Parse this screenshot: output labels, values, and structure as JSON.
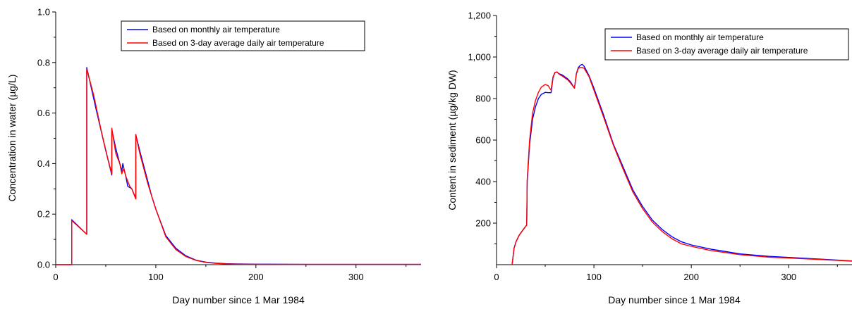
{
  "colors": {
    "monthly": "#0000ff",
    "three_day": "#ff0000",
    "axis": "#000000"
  },
  "chart_data": [
    {
      "type": "line",
      "xlabel": "Day number since 1 Mar 1984",
      "ylabel": "Concentration in water (µg/L)",
      "xlim": [
        0,
        365
      ],
      "ylim": [
        0,
        1.0
      ],
      "xticks": [
        0,
        100,
        200,
        300
      ],
      "xtick_labels": [
        "0",
        "100",
        "200",
        "300"
      ],
      "yticks": [
        0,
        0.2,
        0.4,
        0.6,
        0.8,
        1.0
      ],
      "ytick_labels": [
        "0.0",
        "0.2",
        "0.4",
        "0.6",
        "0.8",
        "1.0"
      ],
      "grid": false,
      "legend_position": "top-right",
      "series": [
        {
          "name": "Based on monthly air temperature",
          "color": "#0000ff",
          "x": [
            0,
            16,
            16,
            31,
            31,
            40,
            50,
            56,
            56,
            60,
            66,
            67,
            70,
            72,
            76,
            80,
            80,
            84,
            88,
            92,
            96,
            100,
            110,
            120,
            130,
            140,
            150,
            160,
            170,
            180,
            200,
            250,
            300,
            365
          ],
          "y": [
            0,
            0,
            0.178,
            0.12,
            0.78,
            0.62,
            0.45,
            0.355,
            0.535,
            0.46,
            0.37,
            0.4,
            0.35,
            0.31,
            0.3,
            0.262,
            0.515,
            0.45,
            0.39,
            0.33,
            0.27,
            0.22,
            0.115,
            0.065,
            0.035,
            0.018,
            0.01,
            0.006,
            0.004,
            0.003,
            0.002,
            0.001,
            0.001,
            0.001
          ]
        },
        {
          "name": "Based on 3-day average daily air temperature",
          "color": "#ff0000",
          "x": [
            0,
            16,
            16,
            31,
            31,
            38,
            46,
            52,
            56,
            56,
            60,
            64,
            66,
            68,
            70,
            72,
            74,
            76,
            78,
            80,
            80,
            84,
            88,
            92,
            96,
            100,
            110,
            120,
            130,
            140,
            150,
            160,
            170,
            180,
            200,
            250,
            300,
            365
          ],
          "y": [
            0,
            0,
            0.175,
            0.12,
            0.775,
            0.67,
            0.52,
            0.42,
            0.36,
            0.54,
            0.44,
            0.4,
            0.36,
            0.38,
            0.35,
            0.33,
            0.31,
            0.3,
            0.28,
            0.26,
            0.515,
            0.44,
            0.38,
            0.32,
            0.27,
            0.22,
            0.11,
            0.06,
            0.032,
            0.017,
            0.009,
            0.005,
            0.003,
            0.002,
            0.001,
            0.001,
            0.001,
            0.001
          ]
        }
      ]
    },
    {
      "type": "line",
      "xlabel": "Day number since 1 Mar 1984",
      "ylabel": "Content in sediment (µg/kg DW)",
      "xlim": [
        0,
        365
      ],
      "ylim": [
        0,
        1200
      ],
      "xticks": [
        0,
        100,
        200,
        300
      ],
      "xtick_labels": [
        "0",
        "100",
        "200",
        "300"
      ],
      "yticks": [
        200,
        400,
        600,
        800,
        1000,
        1200
      ],
      "ytick_labels": [
        "200",
        "400",
        "600",
        "800",
        "1,000",
        "1,200"
      ],
      "grid": false,
      "legend_position": "top-right",
      "series": [
        {
          "name": "Based on monthly air temperature",
          "color": "#0000ff",
          "x": [
            16,
            18,
            20,
            23,
            26,
            30,
            31,
            31.5,
            34,
            37,
            40,
            43,
            46,
            50,
            53,
            56,
            58,
            60,
            62,
            64,
            67,
            70,
            73,
            76,
            80,
            82,
            84,
            86,
            88,
            90,
            95,
            100,
            110,
            120,
            130,
            140,
            150,
            160,
            170,
            180,
            190,
            200,
            220,
            250,
            280,
            300,
            330,
            365
          ],
          "y": [
            0,
            80,
            110,
            140,
            160,
            185,
            190,
            400,
            580,
            700,
            760,
            800,
            820,
            830,
            828,
            828,
            900,
            925,
            928,
            920,
            915,
            905,
            895,
            880,
            850,
            920,
            950,
            960,
            965,
            955,
            910,
            850,
            720,
            580,
            470,
            360,
            280,
            215,
            170,
            135,
            110,
            95,
            75,
            52,
            40,
            35,
            27,
            18
          ]
        },
        {
          "name": "Based on 3-day average daily air temperature",
          "color": "#ff0000",
          "x": [
            16,
            18,
            20,
            23,
            26,
            30,
            31,
            31.5,
            34,
            37,
            40,
            43,
            46,
            50,
            53,
            56,
            58,
            60,
            62,
            64,
            67,
            70,
            73,
            76,
            80,
            82,
            84,
            86,
            88,
            90,
            95,
            100,
            110,
            120,
            130,
            140,
            150,
            160,
            170,
            180,
            190,
            200,
            220,
            250,
            280,
            300,
            330,
            365
          ],
          "y": [
            0,
            80,
            110,
            140,
            160,
            185,
            190,
            410,
            600,
            730,
            790,
            830,
            855,
            868,
            862,
            840,
            905,
            925,
            928,
            918,
            910,
            900,
            890,
            875,
            850,
            918,
            945,
            950,
            950,
            945,
            905,
            840,
            710,
            575,
            460,
            350,
            270,
            205,
            160,
            125,
            100,
            88,
            68,
            48,
            36,
            32,
            25,
            17
          ]
        }
      ]
    }
  ]
}
